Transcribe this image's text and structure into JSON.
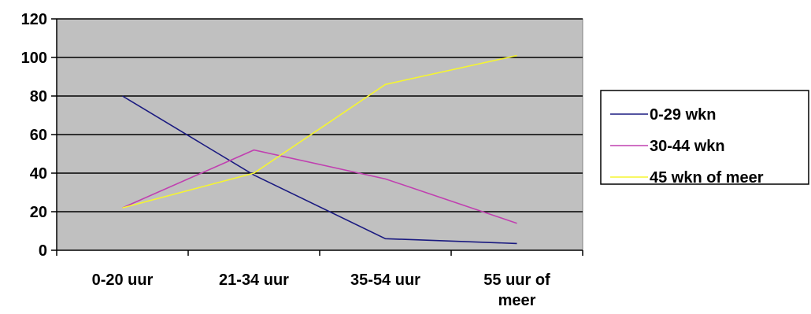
{
  "chart_data": {
    "type": "line",
    "categories": [
      "0-20 uur",
      "21-34 uur",
      "35-54 uur",
      "55 uur of meer"
    ],
    "category_lines": [
      [
        "0-20 uur"
      ],
      [
        "21-34 uur"
      ],
      [
        "35-54 uur"
      ],
      [
        "55 uur of",
        "meer"
      ]
    ],
    "series": [
      {
        "name": "0-29 wkn",
        "color": "#1a1a80",
        "values": [
          80,
          39,
          6,
          3.5
        ]
      },
      {
        "name": "30-44 wkn",
        "color": "#c040b0",
        "values": [
          22,
          52,
          37,
          14
        ]
      },
      {
        "name": "45 wkn of meer",
        "color": "#f5f530",
        "values": [
          22,
          40,
          86,
          101
        ]
      }
    ],
    "ylim": [
      0,
      120
    ],
    "yticks": [
      0,
      20,
      40,
      60,
      80,
      100,
      120
    ],
    "title": "",
    "xlabel": "",
    "ylabel": "",
    "grid": true,
    "plot_background": "#c0c0c0",
    "legend_position": "right"
  }
}
